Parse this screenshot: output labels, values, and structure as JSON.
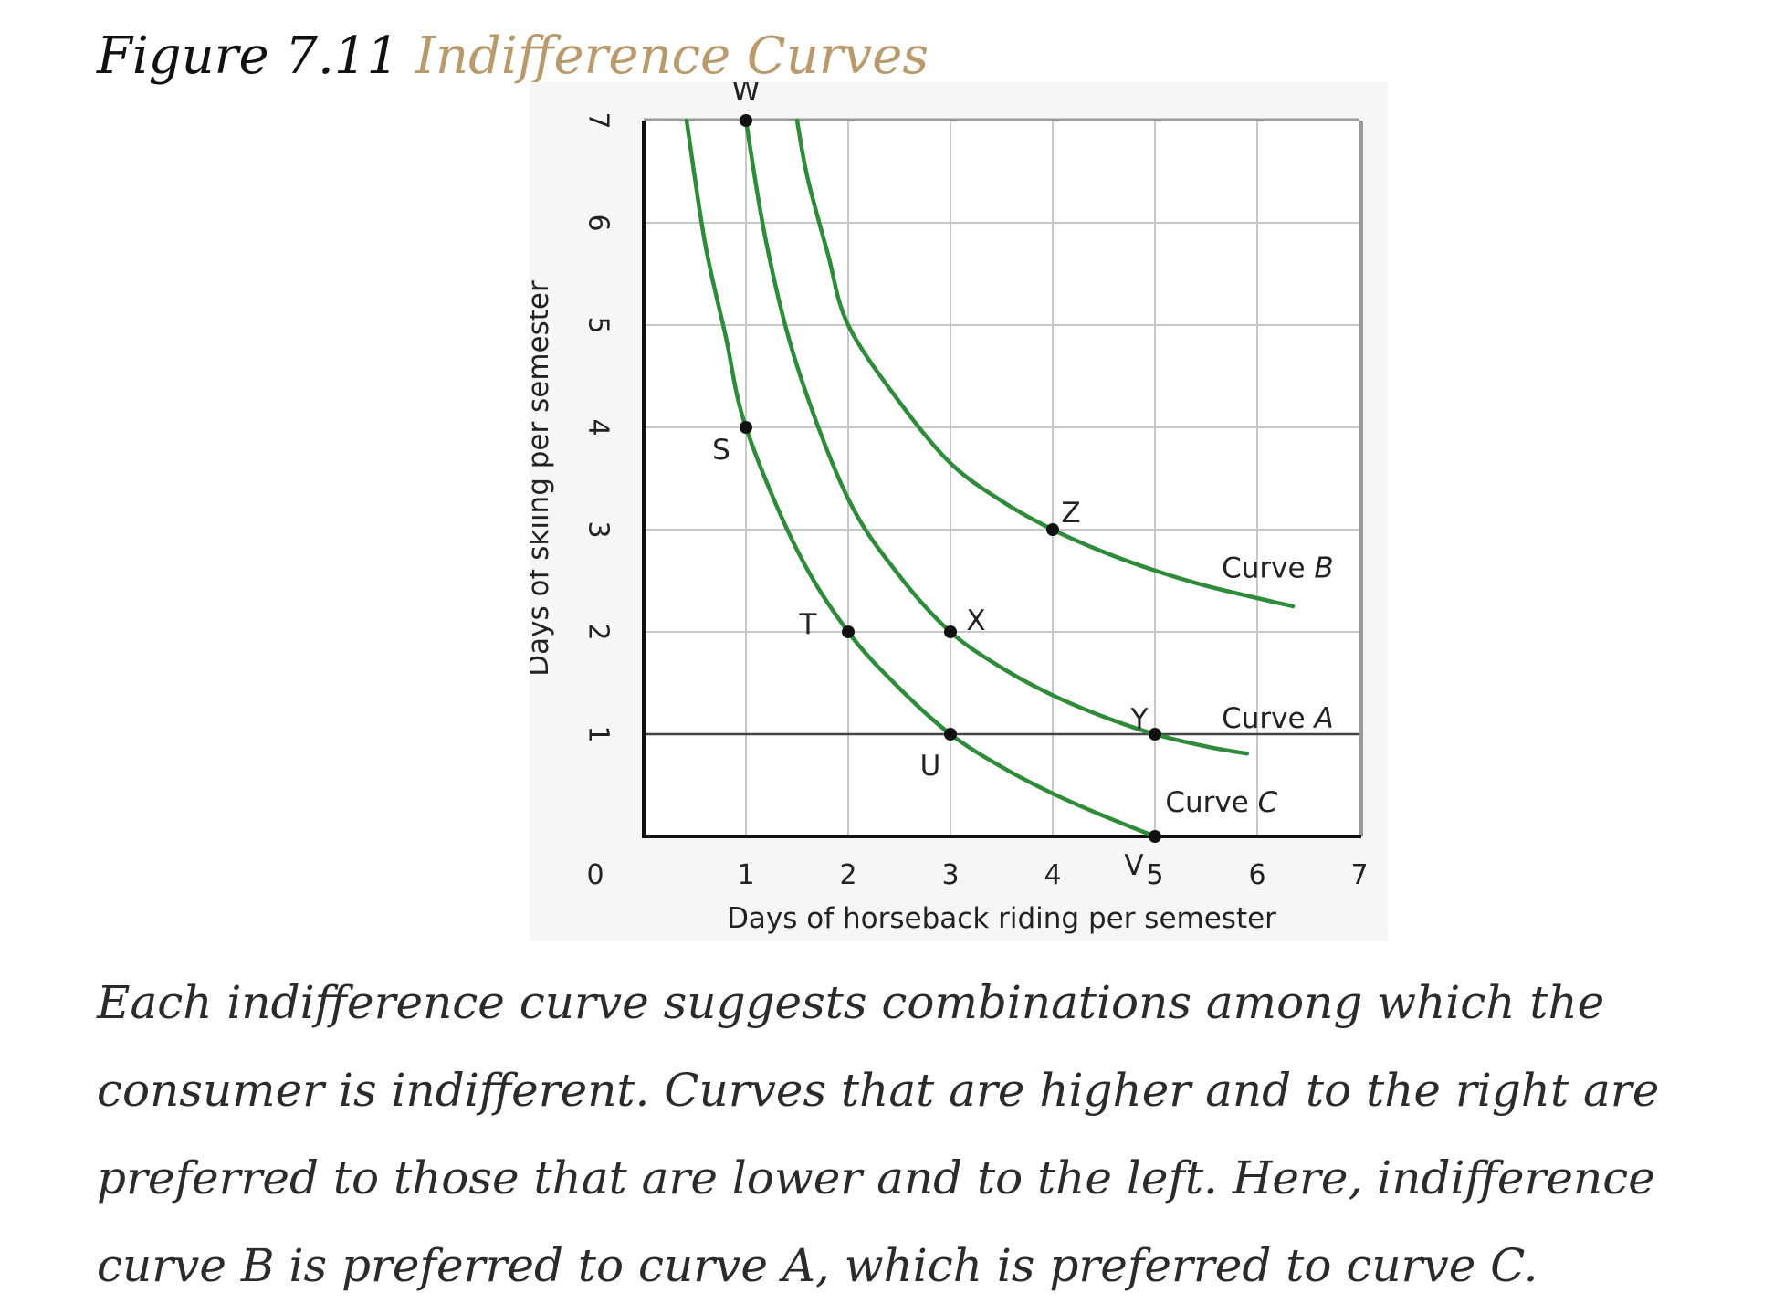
{
  "figure": {
    "number": "Figure 7.11",
    "title": "Indifference Curves"
  },
  "caption": "Each indifference curve suggests combinations among which the consumer is indifferent. Curves that are higher and to the right are preferred to those that are lower and to the left. Here, indifference curve B is preferred to curve A, which is preferred to curve C.",
  "colors": {
    "curve": "#2e8b3a",
    "grid": "#c8c8c8",
    "axis": "#111111",
    "title_accent": "#b89a6c",
    "point": "#111111"
  },
  "chart_data": {
    "type": "line",
    "title": "",
    "xlabel": "Days of horseback riding per semester",
    "ylabel": "Days of skiing per semester",
    "xlim": [
      0,
      7
    ],
    "ylim": [
      0,
      7
    ],
    "x_ticks": [
      "0",
      "1",
      "2",
      "3",
      "4",
      "5",
      "6",
      "7"
    ],
    "y_ticks": [
      "1",
      "2",
      "3",
      "4",
      "5",
      "6",
      "7"
    ],
    "grid": true,
    "series": [
      {
        "name": "Curve C",
        "points": [
          [
            0.42,
            7.0
          ],
          [
            0.6,
            5.8
          ],
          [
            0.8,
            4.9
          ],
          [
            1,
            4
          ],
          [
            1.5,
            2.8
          ],
          [
            2,
            2
          ],
          [
            2.5,
            1.45
          ],
          [
            3,
            1
          ],
          [
            3.5,
            0.68
          ],
          [
            4,
            0.42
          ],
          [
            4.5,
            0.2
          ],
          [
            5,
            0
          ]
        ]
      },
      {
        "name": "Curve A",
        "points": [
          [
            1,
            7
          ],
          [
            1.2,
            5.8
          ],
          [
            1.5,
            4.6
          ],
          [
            2,
            3.3
          ],
          [
            2.5,
            2.55
          ],
          [
            3,
            2
          ],
          [
            3.5,
            1.65
          ],
          [
            4,
            1.38
          ],
          [
            4.5,
            1.17
          ],
          [
            5,
            1
          ],
          [
            5.5,
            0.88
          ],
          [
            5.9,
            0.81
          ]
        ]
      },
      {
        "name": "Curve B",
        "points": [
          [
            1.5,
            7.0
          ],
          [
            1.6,
            6.45
          ],
          [
            1.8,
            5.7
          ],
          [
            2,
            5
          ],
          [
            2.5,
            4.25
          ],
          [
            3,
            3.65
          ],
          [
            3.5,
            3.28
          ],
          [
            4,
            3
          ],
          [
            4.5,
            2.78
          ],
          [
            5,
            2.6
          ],
          [
            5.5,
            2.45
          ],
          [
            6,
            2.33
          ],
          [
            6.35,
            2.25
          ]
        ]
      }
    ],
    "points": [
      {
        "label": "W",
        "x": 1,
        "y": 7
      },
      {
        "label": "S",
        "x": 1,
        "y": 4
      },
      {
        "label": "T",
        "x": 2,
        "y": 2
      },
      {
        "label": "X",
        "x": 3,
        "y": 2
      },
      {
        "label": "U",
        "x": 3,
        "y": 1
      },
      {
        "label": "Z",
        "x": 4,
        "y": 3
      },
      {
        "label": "Y",
        "x": 5,
        "y": 1
      },
      {
        "label": "V",
        "x": 5,
        "y": 0
      }
    ],
    "curve_labels": [
      {
        "prefix": "Curve ",
        "letter": "B"
      },
      {
        "prefix": "Curve ",
        "letter": "A"
      },
      {
        "prefix": "Curve ",
        "letter": "C"
      }
    ]
  }
}
